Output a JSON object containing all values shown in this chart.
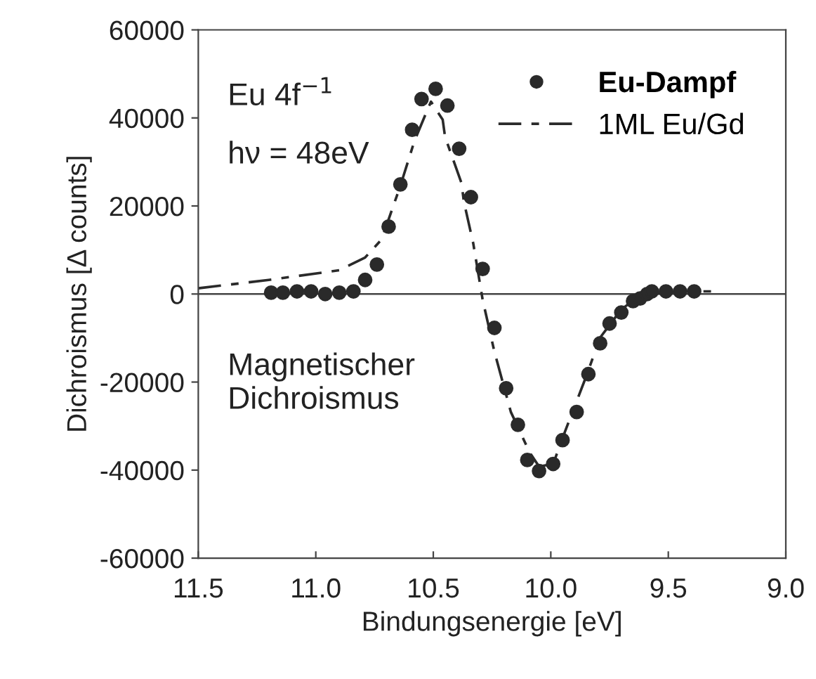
{
  "chart_data": {
    "type": "line",
    "xlabel": "Bindungsenergie [eV]",
    "ylabel": "Dichroismus [Δ counts]",
    "annotations": [
      "Eu 4f$^{−1}$",
      "hν = 48eV",
      "Magnetischer\nDichroismus"
    ],
    "xlim": [
      11.5,
      9.0
    ],
    "ylim": [
      -60000,
      60000
    ],
    "xticks": [
      11.5,
      {
        "value": 11,
        "label": "11.0"
      },
      10.5,
      {
        "value": 10,
        "label": "10.0"
      },
      9.5,
      {
        "value": 9,
        "label": "9.0"
      }
    ],
    "yticks": [
      -60000,
      -40000,
      -20000,
      0,
      20000,
      40000,
      60000
    ],
    "grid": false,
    "legend": "top right",
    "ref_lines": [
      {
        "axis": "y",
        "value": 0,
        "color": "#444444"
      }
    ],
    "series": [
      {
        "name": "Eu-Dampf",
        "type": "scatter",
        "marker": "circle",
        "color": "#2a2a2a",
        "x": [
          11.19,
          11.14,
          11.08,
          11.02,
          10.96,
          10.9,
          10.84,
          10.79,
          10.74,
          10.69,
          10.64,
          10.59,
          10.55,
          10.49,
          10.44,
          10.39,
          10.34,
          10.29,
          10.24,
          10.19,
          10.14,
          10.1,
          10.05,
          9.99,
          9.95,
          9.89,
          9.84,
          9.79,
          9.75,
          9.7,
          9.65,
          9.62,
          9.59,
          9.57,
          9.51,
          9.45,
          9.39
        ],
        "values": [
          300,
          300,
          600,
          600,
          0,
          300,
          600,
          3200,
          6700,
          15300,
          24900,
          37300,
          44300,
          46600,
          42800,
          33000,
          22000,
          5700,
          -7700,
          -21400,
          -29700,
          -37700,
          -40200,
          -38600,
          -33200,
          -26800,
          -18200,
          -11200,
          -6700,
          -4200,
          -1600,
          -1000,
          0,
          600,
          600,
          600,
          600
        ]
      },
      {
        "name": "1ML Eu/Gd",
        "line_style": "dashed",
        "color": "#2a2a2a",
        "x": [
          11.5,
          11.2,
          10.9,
          10.79,
          10.72,
          10.64,
          10.58,
          10.53,
          10.51,
          10.46,
          10.45,
          10.38,
          10.37,
          10.33,
          10.29,
          10.24,
          10.17,
          10.09,
          10.05,
          9.99,
          9.94,
          9.85,
          9.79,
          9.7,
          9.62,
          9.46,
          9.29
        ],
        "values": [
          1300,
          3200,
          5400,
          8300,
          12400,
          24600,
          34800,
          41200,
          43700,
          39600,
          35700,
          25200,
          21000,
          11500,
          -1300,
          -13100,
          -26800,
          -36000,
          -39200,
          -38600,
          -31300,
          -18800,
          -9900,
          -3500,
          -300,
          600,
          600
        ]
      }
    ]
  }
}
